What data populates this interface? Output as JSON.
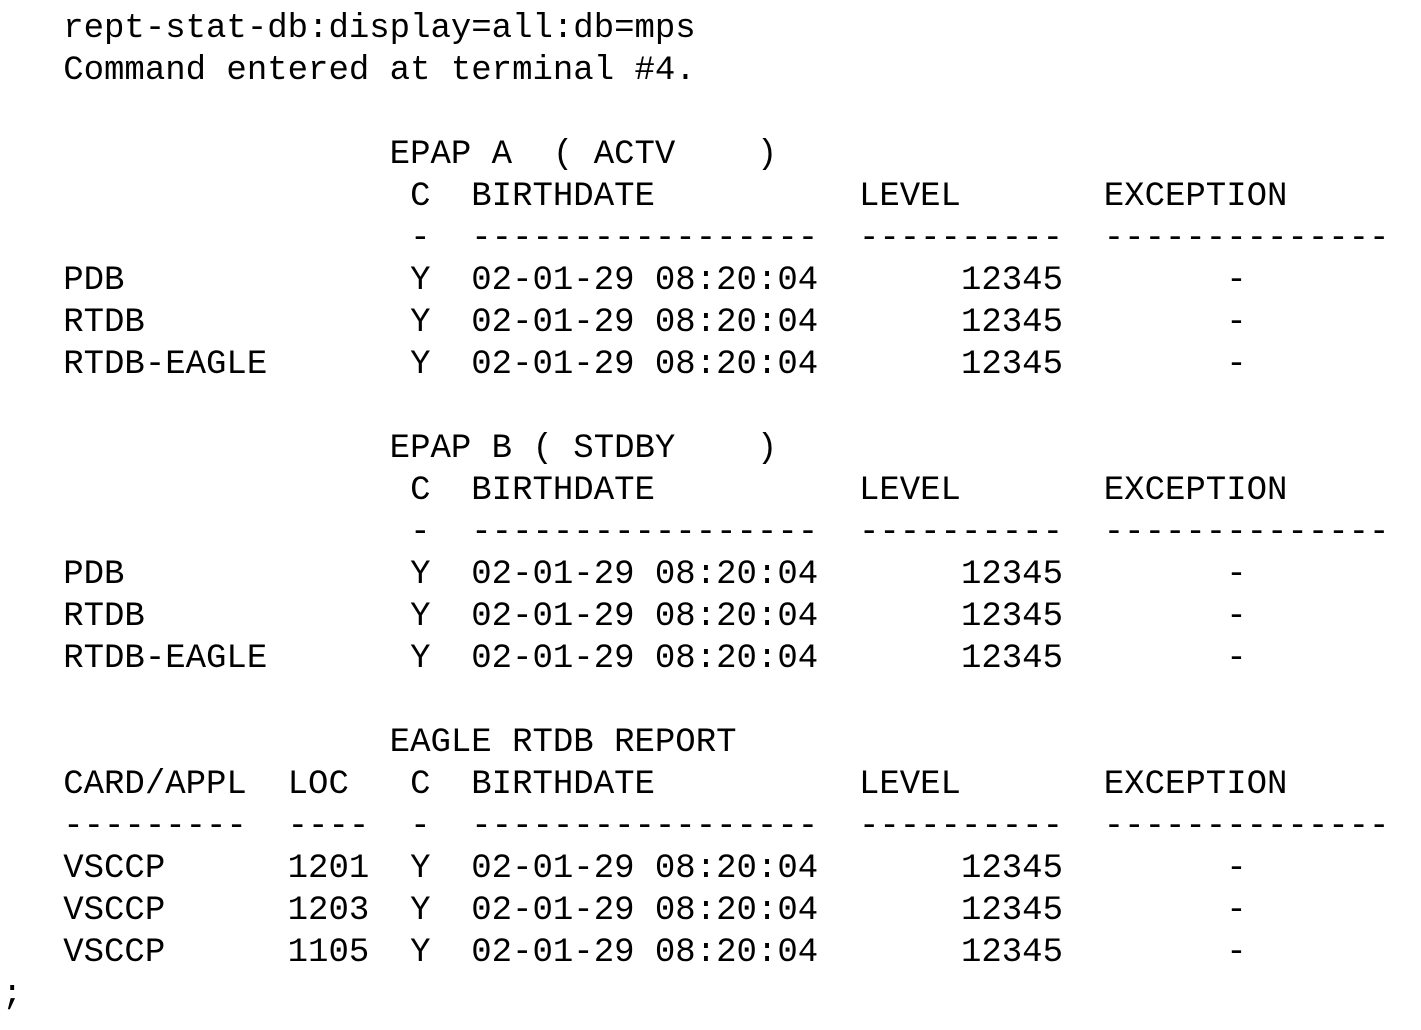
{
  "terminal": {
    "background_color": "#ffffff",
    "text_color": "#000000",
    "command": "rept-stat-db:display=all:db=mps",
    "response": "Command entered at terminal #4.",
    "terminator": ";",
    "lines": [
      "   rept-stat-db:display=all:db=mps",
      "   Command entered at terminal #4.",
      "",
      "                   EPAP A  ( ACTV    )",
      "                    C  BIRTHDATE          LEVEL       EXCEPTION",
      "                    -  -----------------  ----------  --------------",
      "   PDB              Y  02-01-29 08:20:04       12345        -",
      "   RTDB             Y  02-01-29 08:20:04       12345        -",
      "   RTDB-EAGLE       Y  02-01-29 08:20:04       12345        -",
      "",
      "                   EPAP B ( STDBY    )",
      "                    C  BIRTHDATE          LEVEL       EXCEPTION",
      "                    -  -----------------  ----------  --------------",
      "   PDB              Y  02-01-29 08:20:04       12345        -",
      "   RTDB             Y  02-01-29 08:20:04       12345        -",
      "   RTDB-EAGLE       Y  02-01-29 08:20:04       12345        -",
      "",
      "                   EAGLE RTDB REPORT",
      "   CARD/APPL  LOC   C  BIRTHDATE          LEVEL       EXCEPTION",
      "   ---------  ----  -  -----------------  ----------  --------------",
      "   VSCCP      1201  Y  02-01-29 08:20:04       12345        -",
      "   VSCCP      1203  Y  02-01-29 08:20:04       12345        -",
      "   VSCCP      1105  Y  02-01-29 08:20:04       12345        -",
      ";"
    ]
  },
  "report": {
    "sections": [
      {
        "title": "EPAP A ( ACTV )",
        "name": "EPAP A",
        "state": "ACTV",
        "columns": [
          "C",
          "BIRTHDATE",
          "LEVEL",
          "EXCEPTION"
        ],
        "rows": [
          {
            "db": "PDB",
            "c": "Y",
            "birthdate": "02-01-29 08:20:04",
            "level": "12345",
            "exception": "-"
          },
          {
            "db": "RTDB",
            "c": "Y",
            "birthdate": "02-01-29 08:20:04",
            "level": "12345",
            "exception": "-"
          },
          {
            "db": "RTDB-EAGLE",
            "c": "Y",
            "birthdate": "02-01-29 08:20:04",
            "level": "12345",
            "exception": "-"
          }
        ]
      },
      {
        "title": "EPAP B ( STDBY )",
        "name": "EPAP B",
        "state": "STDBY",
        "columns": [
          "C",
          "BIRTHDATE",
          "LEVEL",
          "EXCEPTION"
        ],
        "rows": [
          {
            "db": "PDB",
            "c": "Y",
            "birthdate": "02-01-29 08:20:04",
            "level": "12345",
            "exception": "-"
          },
          {
            "db": "RTDB",
            "c": "Y",
            "birthdate": "02-01-29 08:20:04",
            "level": "12345",
            "exception": "-"
          },
          {
            "db": "RTDB-EAGLE",
            "c": "Y",
            "birthdate": "02-01-29 08:20:04",
            "level": "12345",
            "exception": "-"
          }
        ]
      },
      {
        "title": "EAGLE RTDB REPORT",
        "columns": [
          "CARD/APPL",
          "LOC",
          "C",
          "BIRTHDATE",
          "LEVEL",
          "EXCEPTION"
        ],
        "rows": [
          {
            "card_appl": "VSCCP",
            "loc": "1201",
            "c": "Y",
            "birthdate": "02-01-29 08:20:04",
            "level": "12345",
            "exception": "-"
          },
          {
            "card_appl": "VSCCP",
            "loc": "1203",
            "c": "Y",
            "birthdate": "02-01-29 08:20:04",
            "level": "12345",
            "exception": "-"
          },
          {
            "card_appl": "VSCCP",
            "loc": "1105",
            "c": "Y",
            "birthdate": "02-01-29 08:20:04",
            "level": "12345",
            "exception": "-"
          }
        ]
      }
    ]
  }
}
